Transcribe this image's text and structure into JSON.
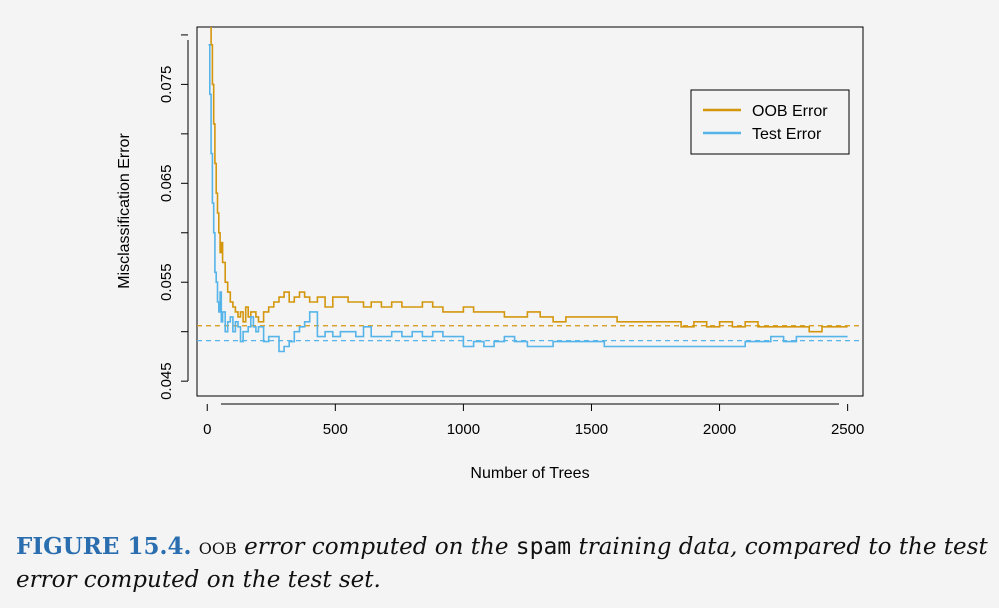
{
  "chart_data": {
    "type": "line",
    "xlabel": "Number of Trees",
    "ylabel": "Misclassification Error",
    "xlim": [
      -40,
      2560
    ],
    "ylim": [
      0.0435,
      0.0808
    ],
    "x_ticks": [
      0,
      500,
      1000,
      1500,
      2000,
      2500
    ],
    "x_tick_labels": [
      "0",
      "500",
      "1000",
      "1500",
      "2000",
      "2500"
    ],
    "y_ticks": [
      0.045,
      0.05,
      0.055,
      0.06,
      0.065,
      0.07,
      0.075,
      0.08
    ],
    "y_tick_labels": [
      "0.045",
      "",
      "0.055",
      "",
      "0.065",
      "",
      "0.075",
      ""
    ],
    "legend": {
      "position": "top-right",
      "entries": [
        "OOB Error",
        "Test Error"
      ]
    },
    "series": [
      {
        "name": "OOB Error",
        "color": "#d4960d",
        "asymptote": 0.0506,
        "x": [
          5,
          10,
          15,
          20,
          25,
          30,
          35,
          40,
          45,
          50,
          55,
          60,
          70,
          80,
          90,
          100,
          110,
          120,
          130,
          140,
          150,
          160,
          170,
          180,
          190,
          200,
          220,
          240,
          260,
          280,
          300,
          320,
          340,
          360,
          380,
          400,
          430,
          460,
          490,
          520,
          550,
          580,
          610,
          640,
          680,
          720,
          760,
          800,
          840,
          880,
          920,
          960,
          1000,
          1040,
          1080,
          1120,
          1160,
          1200,
          1250,
          1300,
          1350,
          1400,
          1450,
          1500,
          1550,
          1600,
          1650,
          1700,
          1750,
          1800,
          1850,
          1900,
          1950,
          2000,
          2050,
          2100,
          2150,
          2200,
          2250,
          2300,
          2350,
          2400,
          2450,
          2500
        ],
        "values": [
          0.083,
          0.081,
          0.079,
          0.075,
          0.071,
          0.067,
          0.064,
          0.062,
          0.06,
          0.058,
          0.059,
          0.057,
          0.055,
          0.054,
          0.053,
          0.0525,
          0.052,
          0.0515,
          0.052,
          0.051,
          0.0525,
          0.0515,
          0.052,
          0.052,
          0.0515,
          0.051,
          0.052,
          0.0525,
          0.053,
          0.0535,
          0.054,
          0.053,
          0.0535,
          0.054,
          0.0535,
          0.053,
          0.0535,
          0.0525,
          0.0535,
          0.0535,
          0.053,
          0.053,
          0.0525,
          0.053,
          0.0525,
          0.053,
          0.0525,
          0.0525,
          0.053,
          0.0525,
          0.052,
          0.052,
          0.0525,
          0.052,
          0.052,
          0.052,
          0.0515,
          0.0515,
          0.052,
          0.0515,
          0.051,
          0.0515,
          0.0515,
          0.0515,
          0.0515,
          0.051,
          0.051,
          0.051,
          0.051,
          0.051,
          0.0505,
          0.051,
          0.0505,
          0.051,
          0.0505,
          0.051,
          0.0505,
          0.0505,
          0.0505,
          0.0505,
          0.05,
          0.0505,
          0.0505,
          0.0505
        ]
      },
      {
        "name": "Test Error",
        "color": "#56b4e9",
        "asymptote": 0.0491,
        "x": [
          5,
          10,
          15,
          20,
          25,
          30,
          35,
          40,
          45,
          50,
          55,
          60,
          70,
          80,
          90,
          100,
          110,
          120,
          130,
          140,
          150,
          160,
          170,
          180,
          190,
          200,
          220,
          240,
          260,
          280,
          300,
          320,
          340,
          360,
          380,
          400,
          430,
          460,
          490,
          520,
          550,
          580,
          610,
          640,
          680,
          720,
          760,
          800,
          840,
          880,
          920,
          960,
          1000,
          1040,
          1080,
          1120,
          1160,
          1200,
          1250,
          1300,
          1350,
          1400,
          1450,
          1500,
          1550,
          1600,
          1650,
          1700,
          1750,
          1800,
          1850,
          1900,
          1950,
          2000,
          2050,
          2100,
          2150,
          2200,
          2250,
          2300,
          2350,
          2400,
          2450,
          2500
        ],
        "values": [
          0.079,
          0.074,
          0.068,
          0.063,
          0.06,
          0.056,
          0.055,
          0.053,
          0.052,
          0.054,
          0.051,
          0.052,
          0.05,
          0.051,
          0.0515,
          0.05,
          0.051,
          0.0505,
          0.049,
          0.05,
          0.05,
          0.0505,
          0.0515,
          0.0505,
          0.05,
          0.0505,
          0.049,
          0.0495,
          0.0495,
          0.048,
          0.0485,
          0.049,
          0.05,
          0.0505,
          0.051,
          0.052,
          0.0495,
          0.05,
          0.0495,
          0.05,
          0.05,
          0.0495,
          0.0505,
          0.0495,
          0.0495,
          0.05,
          0.0495,
          0.05,
          0.0495,
          0.05,
          0.0495,
          0.0495,
          0.0485,
          0.049,
          0.0485,
          0.049,
          0.0495,
          0.049,
          0.0485,
          0.0485,
          0.049,
          0.049,
          0.049,
          0.049,
          0.0485,
          0.0485,
          0.0485,
          0.0485,
          0.0485,
          0.0485,
          0.0485,
          0.0485,
          0.0485,
          0.0485,
          0.0485,
          0.049,
          0.049,
          0.0495,
          0.049,
          0.0495,
          0.0495,
          0.0495,
          0.0495,
          0.0495
        ]
      }
    ]
  },
  "caption": {
    "label": "FIGURE 15.4.",
    "oob": "oob",
    "text1": "error computed on the",
    "code": "spam",
    "text2": "training data, compared to the test error computed on the test set."
  }
}
